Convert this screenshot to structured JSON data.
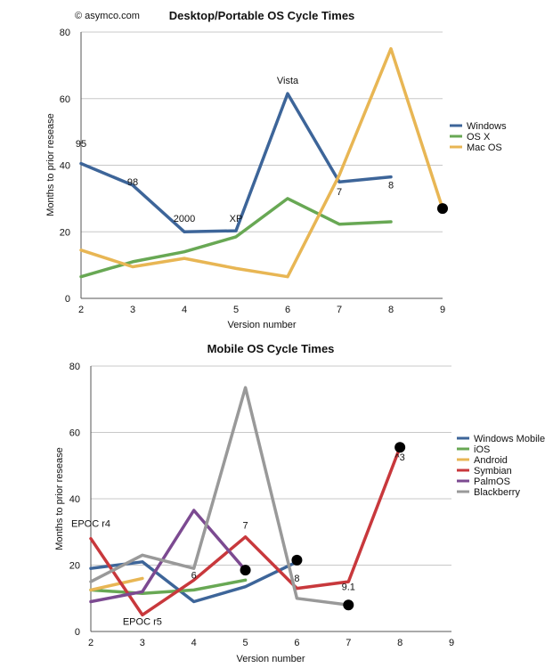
{
  "credit": "© asymco.com",
  "chart_data": [
    {
      "type": "line",
      "title": "Desktop/Portable OS Cycle Times",
      "xlabel": "Version number",
      "ylabel": "Months to prior resease",
      "xlim": [
        2,
        9
      ],
      "ylim": [
        0,
        80
      ],
      "xticks": [
        2,
        3,
        4,
        5,
        6,
        7,
        8,
        9
      ],
      "yticks": [
        0,
        20,
        40,
        60,
        80
      ],
      "grid": true,
      "legend": "right",
      "series": [
        {
          "name": "Windows",
          "color": "#3d6599",
          "x": [
            2,
            3,
            4,
            5,
            6,
            7,
            8
          ],
          "y": [
            40.5,
            34,
            20,
            20.3,
            61.5,
            35,
            36.5
          ]
        },
        {
          "name": "OS X",
          "color": "#68a854",
          "x": [
            2,
            3,
            4,
            5,
            6,
            7,
            8
          ],
          "y": [
            6.5,
            11,
            14,
            18.5,
            30,
            22.3,
            23
          ]
        },
        {
          "name": "Mac OS",
          "color": "#e8b654",
          "x": [
            2,
            3,
            4,
            5,
            6,
            7,
            8,
            9
          ],
          "y": [
            14.5,
            9.5,
            12,
            9,
            6.5,
            37,
            75,
            27
          ]
        }
      ],
      "markers": [
        {
          "x": 9,
          "y": 27
        }
      ],
      "annotations": [
        {
          "text": "95",
          "x": 2,
          "y": 45.5
        },
        {
          "text": "98",
          "x": 3,
          "y": 34
        },
        {
          "text": "2000",
          "x": 4,
          "y": 23
        },
        {
          "text": "XP",
          "x": 5,
          "y": 23
        },
        {
          "text": "Vista",
          "x": 6,
          "y": 64.5
        },
        {
          "text": "7",
          "x": 7,
          "y": 31
        },
        {
          "text": "8",
          "x": 8,
          "y": 33
        }
      ]
    },
    {
      "type": "line",
      "title": "Mobile OS Cycle Times",
      "xlabel": "Version number",
      "ylabel": "Months to prior resease",
      "xlim": [
        2,
        9
      ],
      "ylim": [
        0,
        80
      ],
      "xticks": [
        2,
        3,
        4,
        5,
        6,
        7,
        8,
        9
      ],
      "yticks": [
        0,
        20,
        40,
        60,
        80
      ],
      "grid": true,
      "legend": "right",
      "series": [
        {
          "name": "Windows Mobile",
          "color": "#3d6599",
          "x": [
            2,
            3,
            4,
            5,
            6
          ],
          "y": [
            19,
            21,
            9,
            13.5,
            21
          ]
        },
        {
          "name": "iOS",
          "color": "#68a854",
          "x": [
            2,
            3,
            4,
            5
          ],
          "y": [
            12.5,
            11.5,
            12.5,
            15.5
          ]
        },
        {
          "name": "Android",
          "color": "#e8b654",
          "x": [
            2,
            3
          ],
          "y": [
            12.5,
            16
          ]
        },
        {
          "name": "Symbian",
          "color": "#c8383c",
          "x": [
            2,
            3,
            4,
            5,
            6,
            7,
            8
          ],
          "y": [
            28,
            5,
            15.5,
            28.5,
            13,
            15,
            55.5
          ]
        },
        {
          "name": "PalmOS",
          "color": "#7c4a91",
          "x": [
            2,
            3,
            4,
            5
          ],
          "y": [
            9,
            12,
            36.5,
            18.5
          ]
        },
        {
          "name": "Blackberry",
          "color": "#999999",
          "x": [
            2,
            3,
            4,
            5,
            6,
            7
          ],
          "y": [
            15,
            23,
            19,
            73.5,
            10,
            8
          ]
        }
      ],
      "markers": [
        {
          "x": 5,
          "y": 18.5
        },
        {
          "x": 6,
          "y": 21.5
        },
        {
          "x": 7,
          "y": 8
        },
        {
          "x": 8,
          "y": 55.5
        }
      ],
      "annotations": [
        {
          "text": "EPOC r4",
          "x": 2,
          "y": 31.5
        },
        {
          "text": "EPOC r5",
          "x": 3,
          "y": 2
        },
        {
          "text": "6",
          "x": 4,
          "y": 16
        },
        {
          "text": "7",
          "x": 5,
          "y": 31
        },
        {
          "text": "8",
          "x": 6,
          "y": 15
        },
        {
          "text": "9.1",
          "x": 7,
          "y": 12.5
        },
        {
          "text": "^3",
          "x": 8,
          "y": 51.5
        }
      ]
    }
  ]
}
